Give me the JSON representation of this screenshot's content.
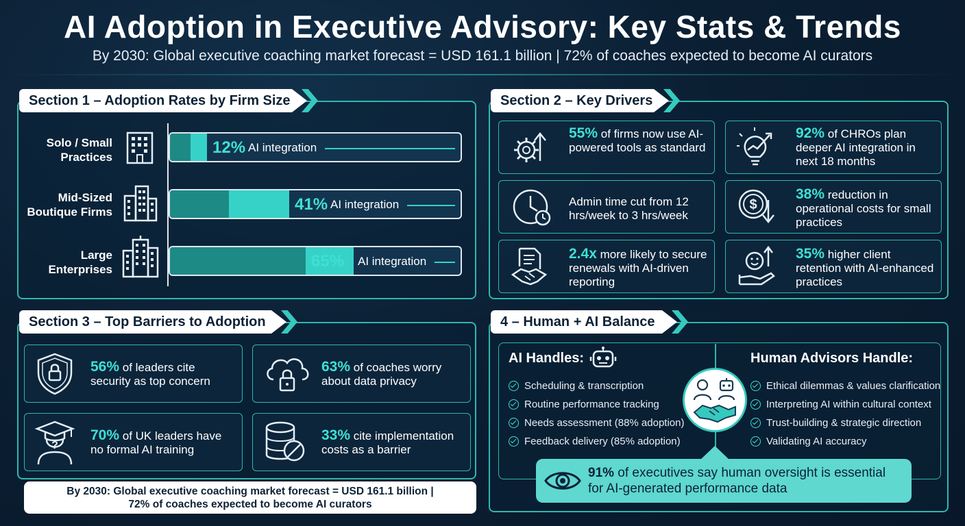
{
  "title": "AI Adoption in Executive Advisory: Key Stats & Trends",
  "subtitle": "By 2030: Global executive coaching market forecast = USD 161.1 billion  |  72% of coaches expected to become AI curators",
  "colors": {
    "background": "#0b1f33",
    "accent": "#36d2c8",
    "panel_border": "#2fb7ae",
    "callout": "#5fd8cf"
  },
  "section1": {
    "tab": "Section 1 – Adoption Rates by Firm Size",
    "rows": [
      {
        "label_line1": "Solo / Small",
        "label_line2": "Practices",
        "pct": "12%",
        "value": 12,
        "bar_label": "AI integration",
        "icon": "small-building-icon"
      },
      {
        "label_line1": "Mid-Sized",
        "label_line2": "Boutique Firms",
        "pct": "41%",
        "value": 41,
        "bar_label": "AI integration",
        "icon": "mid-building-icon"
      },
      {
        "label_line1": "Large",
        "label_line2": "Enterprises",
        "pct": "65%",
        "value": 65,
        "bar_label": "AI integration",
        "icon": "large-building-icon"
      }
    ]
  },
  "section2": {
    "tab": "Section 2 – Key Drivers",
    "cards": [
      {
        "hl": "55%",
        "text": " of firms now use AI-powered tools as standard",
        "icon": "gear-arrow-icon"
      },
      {
        "hl": "92%",
        "text": " of CHROs plan deeper AI integration in next 18 months",
        "icon": "lightbulb-growth-icon"
      },
      {
        "hl": "",
        "text": "Admin time cut from 12 hrs/week to 3 hrs/week",
        "icon": "clock-icon"
      },
      {
        "hl": "38%",
        "text": " reduction in operational costs for small practices",
        "icon": "dollar-down-icon"
      },
      {
        "hl": "2.4x",
        "text": " more likely to secure renewals with AI-driven reporting",
        "icon": "document-handshake-icon"
      },
      {
        "hl": "35%",
        "text": " higher client retention with AI-enhanced practices",
        "icon": "hand-smile-icon"
      }
    ]
  },
  "section3": {
    "tab": "Section 3 – Top Barriers to Adoption",
    "cards": [
      {
        "hl": "56%",
        "text": " of leaders cite security as top concern",
        "icon": "shield-lock-icon"
      },
      {
        "hl": "63%",
        "text": " of coaches worry about data privacy",
        "icon": "cloud-lock-icon"
      },
      {
        "hl": "70%",
        "text": " of UK leaders have no formal AI training",
        "icon": "graduate-question-icon"
      },
      {
        "hl": "33%",
        "text": " cite implementation costs as a barrier",
        "icon": "database-slash-icon"
      }
    ],
    "footer_line1": "By 2030: Global executive coaching market forecast = USD 161.1 billion |",
    "footer_line2": "72% of coaches expected to become AI curators"
  },
  "section4": {
    "tab": "4 – Human + AI Balance",
    "ai_heading": "AI Handles:",
    "ai_items": [
      "Scheduling & transcription",
      "Routine performance tracking",
      "Needs assessment (88% adoption)",
      "Feedback delivery (85% adoption)"
    ],
    "human_heading": "Human Advisors Handle:",
    "human_items": [
      "Ethical dilemmas & values clarification",
      "Interpreting AI within cultural context",
      "Trust-building & strategic direction",
      "Validating AI accuracy"
    ],
    "callout_hl": "91%",
    "callout_text": " of executives say human oversight is essential for AI-generated performance data"
  }
}
